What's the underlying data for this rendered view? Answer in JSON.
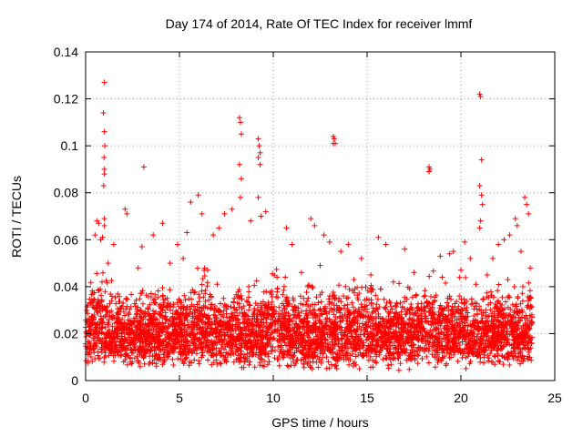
{
  "chart_data": {
    "type": "scatter",
    "title": "Day 174 of 2014, Rate Of TEC Index for receiver lmmf",
    "xlabel": "GPS time / hours",
    "ylabel": "ROTI / TECUs",
    "xlim": [
      0,
      25
    ],
    "ylim": [
      0,
      0.14
    ],
    "xticks": [
      0,
      5,
      10,
      15,
      20,
      25
    ],
    "yticks": [
      0,
      0.02,
      0.04,
      0.06,
      0.08,
      0.1,
      0.12,
      0.14
    ],
    "xtick_labels": [
      "0",
      "5",
      "10",
      "15",
      "20",
      "25"
    ],
    "ytick_labels": [
      "0",
      "0.02",
      "0.04",
      "0.06",
      "0.08",
      "0.1",
      "0.12",
      "0.14"
    ],
    "grid": true,
    "marker": "+",
    "color": "#ff0000",
    "grid_color": "#a0a0a0",
    "series": [
      {
        "name": "ROTI",
        "x": [
          1.0,
          0.95,
          1.0,
          1.02,
          0.98,
          1.0,
          1.0,
          0.96,
          1.0,
          1.0,
          3.1,
          8.2,
          8.25,
          8.3,
          8.2,
          8.3,
          8.25,
          9.2,
          9.25,
          9.3,
          9.2,
          9.3,
          9.2,
          9.35,
          13.2,
          13.25,
          13.3,
          13.2,
          18.3,
          18.35,
          18.3,
          21.0,
          21.05,
          21.1,
          21.0,
          21.1,
          21.15,
          21.05,
          21.0,
          0.5,
          0.6,
          0.7,
          0.8,
          0.9,
          1.2,
          1.5,
          2.1,
          2.2,
          3.0,
          3.6,
          4.1,
          4.9,
          5.4,
          5.6,
          6.0,
          6.2,
          6.8,
          7.1,
          7.4,
          7.8,
          8.8,
          9.6,
          10.7,
          11.0,
          12.0,
          12.2,
          12.7,
          13.0,
          13.6,
          14.0,
          14.7,
          15.6,
          16.0,
          17.0,
          18.9,
          19.4,
          19.6,
          20.2,
          20.5,
          21.4,
          21.7,
          22.0,
          22.3,
          22.6,
          22.9,
          23.0,
          23.2,
          23.4,
          23.5,
          23.6,
          2.8,
          4.5,
          5.2,
          6.5,
          10.2,
          11.5,
          12.5,
          14.3,
          15.2,
          16.4,
          17.5,
          19.0,
          20.0,
          20.8,
          22.5,
          23.3
        ],
        "y": [
          0.127,
          0.114,
          0.106,
          0.1,
          0.095,
          0.09,
          0.088,
          0.083,
          0.069,
          0.066,
          0.091,
          0.112,
          0.11,
          0.105,
          0.092,
          0.086,
          0.078,
          0.103,
          0.1,
          0.097,
          0.095,
          0.092,
          0.078,
          0.07,
          0.104,
          0.103,
          0.101,
          0.101,
          0.091,
          0.09,
          0.089,
          0.122,
          0.121,
          0.094,
          0.083,
          0.079,
          0.075,
          0.068,
          0.065,
          0.062,
          0.068,
          0.067,
          0.06,
          0.061,
          0.05,
          0.058,
          0.073,
          0.071,
          0.057,
          0.062,
          0.067,
          0.058,
          0.063,
          0.076,
          0.079,
          0.071,
          0.062,
          0.065,
          0.071,
          0.073,
          0.068,
          0.072,
          0.065,
          0.058,
          0.069,
          0.066,
          0.062,
          0.059,
          0.055,
          0.058,
          0.052,
          0.061,
          0.058,
          0.056,
          0.053,
          0.054,
          0.055,
          0.059,
          0.052,
          0.045,
          0.052,
          0.058,
          0.06,
          0.062,
          0.069,
          0.066,
          0.055,
          0.078,
          0.075,
          0.071,
          0.048,
          0.05,
          0.052,
          0.047,
          0.044,
          0.046,
          0.049,
          0.043,
          0.045,
          0.042,
          0.046,
          0.044,
          0.047,
          0.041,
          0.043,
          0.04
        ]
      }
    ],
    "dense_band": {
      "x_range": [
        0,
        23.8
      ],
      "y_typical_range": [
        0.004,
        0.04
      ],
      "y_center": 0.016,
      "description": "continuous dense band of ROTI samples from 0 to about 23.8 hours"
    }
  }
}
